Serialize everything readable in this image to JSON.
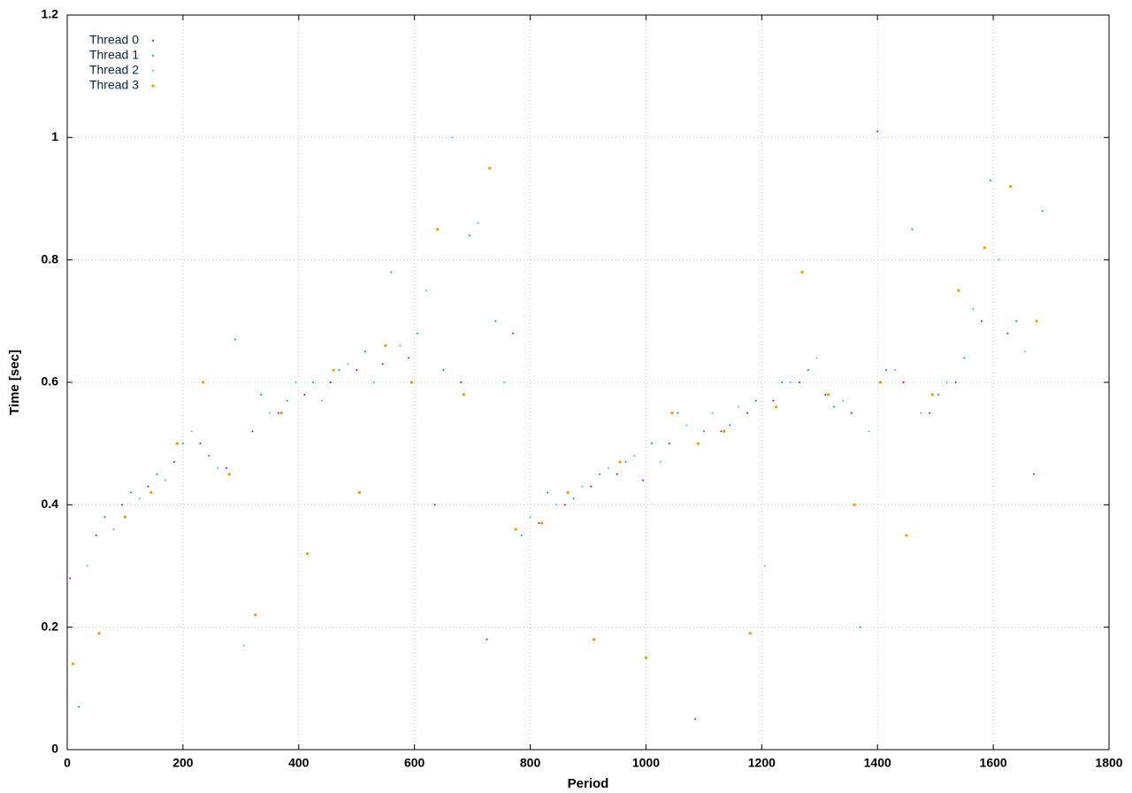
{
  "chart_data": {
    "type": "scatter",
    "x_label": "Period",
    "y_label": "Time [sec]",
    "xlim": [
      0,
      1800
    ],
    "ylim": [
      0,
      1.2
    ],
    "xticks": [
      0,
      200,
      400,
      600,
      800,
      1000,
      1200,
      1400,
      1600,
      1800
    ],
    "yticks": [
      0,
      0.2,
      0.4,
      0.6,
      0.8,
      1,
      1.2
    ],
    "grid": true,
    "legend": "upper-left",
    "series": [
      {
        "name": "Thread 0",
        "color": "#9400d3",
        "x": [
          5,
          50,
          95,
          140,
          185,
          230,
          275,
          320,
          365,
          410,
          455,
          500,
          545,
          590,
          635,
          680,
          725,
          770,
          815,
          860,
          905,
          950,
          995,
          1040,
          1085,
          1130,
          1175,
          1220,
          1265,
          1310,
          1355,
          1400,
          1445,
          1490,
          1535,
          1580,
          1625,
          1670
        ],
        "values": [
          0.28,
          0.35,
          0.4,
          0.43,
          0.47,
          0.5,
          0.46,
          0.52,
          0.55,
          0.58,
          0.6,
          0.62,
          0.63,
          0.64,
          0.4,
          0.6,
          0.18,
          0.68,
          0.37,
          0.4,
          0.43,
          0.45,
          0.44,
          0.5,
          0.05,
          0.52,
          0.55,
          0.57,
          0.6,
          0.58,
          0.55,
          1.01,
          0.6,
          0.55,
          0.6,
          0.7,
          0.68,
          0.45
        ]
      },
      {
        "name": "Thread 1",
        "color": "#009e73",
        "x": [
          20,
          65,
          110,
          155,
          200,
          245,
          290,
          335,
          380,
          425,
          470,
          515,
          560,
          605,
          650,
          695,
          740,
          785,
          830,
          875,
          920,
          965,
          1010,
          1055,
          1100,
          1145,
          1190,
          1235,
          1280,
          1325,
          1370,
          1415,
          1460,
          1505,
          1550,
          1595,
          1640,
          1685
        ],
        "values": [
          0.07,
          0.38,
          0.42,
          0.45,
          0.5,
          0.48,
          0.67,
          0.58,
          0.57,
          0.6,
          0.62,
          0.65,
          0.78,
          0.68,
          0.62,
          0.84,
          0.7,
          0.35,
          0.42,
          0.41,
          0.45,
          0.47,
          0.5,
          0.55,
          0.52,
          0.53,
          0.57,
          0.6,
          0.62,
          0.56,
          0.2,
          0.62,
          0.85,
          0.58,
          0.64,
          0.93,
          0.7,
          0.88
        ]
      },
      {
        "name": "Thread 2",
        "color": "#56b4e9",
        "x": [
          35,
          80,
          125,
          170,
          215,
          260,
          305,
          350,
          395,
          440,
          485,
          530,
          575,
          620,
          665,
          710,
          755,
          800,
          845,
          890,
          935,
          980,
          1025,
          1070,
          1115,
          1160,
          1205,
          1250,
          1295,
          1340,
          1385,
          1430,
          1475,
          1520,
          1565,
          1610,
          1655
        ],
        "values": [
          0.3,
          0.36,
          0.41,
          0.44,
          0.52,
          0.46,
          0.17,
          0.55,
          0.6,
          0.57,
          0.63,
          0.6,
          0.66,
          0.75,
          1.0,
          0.86,
          0.6,
          0.38,
          0.4,
          0.43,
          0.46,
          0.48,
          0.47,
          0.53,
          0.55,
          0.56,
          0.3,
          0.6,
          0.64,
          0.57,
          0.52,
          0.62,
          0.55,
          0.6,
          0.72,
          0.8,
          0.65
        ]
      },
      {
        "name": "Thread 3",
        "color": "#e69f00",
        "x": [
          10,
          55,
          100,
          145,
          190,
          235,
          280,
          325,
          370,
          415,
          460,
          505,
          550,
          595,
          640,
          685,
          730,
          775,
          820,
          865,
          910,
          955,
          1000,
          1045,
          1090,
          1135,
          1180,
          1225,
          1270,
          1315,
          1360,
          1405,
          1450,
          1495,
          1540,
          1585,
          1630,
          1675
        ],
        "values": [
          0.14,
          0.19,
          0.38,
          0.42,
          0.5,
          0.6,
          0.45,
          0.22,
          0.55,
          0.32,
          0.62,
          0.42,
          0.66,
          0.6,
          0.85,
          0.58,
          0.95,
          0.36,
          0.37,
          0.42,
          0.18,
          0.47,
          0.15,
          0.55,
          0.5,
          0.52,
          0.19,
          0.56,
          0.78,
          0.58,
          0.4,
          0.6,
          0.35,
          0.58,
          0.75,
          0.82,
          0.92,
          0.7
        ]
      }
    ]
  }
}
